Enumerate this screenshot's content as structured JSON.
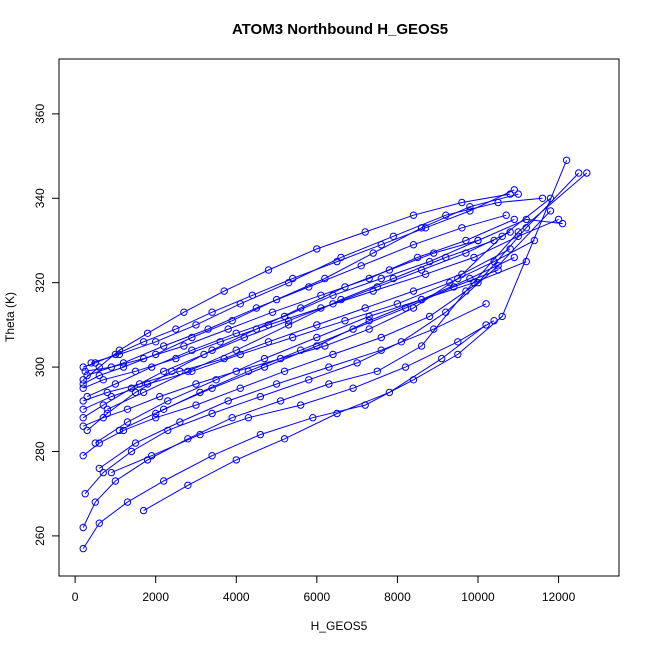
{
  "chart_data": {
    "type": "scatter",
    "title": "ATOM3 Northbound H_GEOS5",
    "xlabel": "H_GEOS5",
    "ylabel": "Theta (K)",
    "xlim": [
      -400,
      13500
    ],
    "ylim": [
      250.5,
      373
    ],
    "x_ticks": [
      0,
      2000,
      4000,
      6000,
      8000,
      10000,
      12000
    ],
    "x_tick_labels": [
      "0",
      "2000",
      "4000",
      "6000",
      "8000",
      "10000",
      "12000"
    ],
    "y_ticks": [
      260,
      280,
      300,
      320,
      340,
      360
    ],
    "y_tick_labels": [
      "260",
      "280",
      "300",
      "320",
      "340",
      "360"
    ],
    "grid": false,
    "legend": "none",
    "marker": "open circle",
    "line": "connected",
    "color": "#0000ff",
    "series": [
      {
        "x": [
          200,
          600,
          1300,
          2200,
          3400,
          4600,
          5900,
          7200,
          8400,
          9500,
          10600,
          12200
        ],
        "y": [
          257,
          263,
          268,
          273,
          279,
          284,
          288,
          291,
          297,
          303,
          312,
          349
        ]
      },
      {
        "x": [
          200,
          500,
          1000,
          1800,
          2800,
          3900,
          5100,
          6300,
          7500,
          8600,
          9700,
          11000,
          12700
        ],
        "y": [
          262,
          268,
          273,
          278,
          283,
          288,
          292,
          296,
          299,
          305,
          318,
          332,
          346
        ]
      },
      {
        "x": [
          250,
          700,
          1400,
          2300,
          3400,
          4600,
          5800,
          7000,
          8100,
          9200,
          10500,
          11800
        ],
        "y": [
          270,
          275,
          280,
          285,
          289,
          293,
          297,
          301,
          306,
          313,
          324,
          337
        ]
      },
      {
        "x": [
          200,
          600,
          1200,
          2000,
          3000,
          4100,
          5200,
          6400,
          7600,
          8800,
          10000,
          11200,
          12500
        ],
        "y": [
          279,
          282,
          285,
          288,
          291,
          295,
          299,
          303,
          307,
          312,
          320,
          333,
          346
        ]
      },
      {
        "x": [
          200,
          700,
          1300,
          2100,
          3000,
          4000,
          5100,
          6200,
          7300,
          8400,
          9500,
          10600,
          11800
        ],
        "y": [
          286,
          288,
          290,
          293,
          296,
          299,
          302,
          305,
          309,
          314,
          321,
          331,
          340
        ]
      },
      {
        "x": [
          200,
          800,
          1600,
          2600,
          3700,
          4800,
          6000,
          7200,
          8400,
          9600,
          10800
        ],
        "y": [
          292,
          294,
          296,
          299,
          302,
          306,
          310,
          314,
          318,
          322,
          328
        ]
      },
      {
        "x": [
          250,
          900,
          1700,
          2700,
          3800,
          4900,
          6100,
          7300,
          8500,
          9700,
          10900
        ],
        "y": [
          299,
          300,
          302,
          305,
          309,
          313,
          317,
          321,
          326,
          330,
          335
        ]
      },
      {
        "x": [
          200,
          600,
          1200,
          2000,
          2900,
          3900,
          5000,
          6200,
          7400,
          8600,
          9800,
          11000
        ],
        "y": [
          296,
          298,
          300,
          303,
          307,
          311,
          316,
          321,
          327,
          333,
          338,
          341
        ]
      },
      {
        "x": [
          200,
          500,
          1000,
          1700,
          2500,
          3400,
          4400,
          5400,
          6500,
          7600,
          8700,
          9800,
          10900
        ],
        "y": [
          300,
          301,
          303,
          306,
          309,
          313,
          317,
          321,
          325,
          329,
          333,
          337,
          342
        ]
      },
      {
        "x": [
          300,
          800,
          1500,
          2400,
          3400,
          4500,
          5600,
          6700,
          7800,
          8900,
          10000
        ],
        "y": [
          285,
          289,
          294,
          299,
          304,
          309,
          314,
          319,
          323,
          327,
          330
        ]
      },
      {
        "x": [
          200,
          700,
          1400,
          2200,
          3200,
          4200,
          5300,
          6400,
          7500,
          8600,
          9700,
          10800
        ],
        "y": [
          288,
          291,
          295,
          299,
          303,
          307,
          311,
          315,
          319,
          323,
          327,
          332
        ]
      },
      {
        "x": [
          300,
          1000,
          1900,
          2900,
          4000,
          5200,
          6400,
          7600,
          8800,
          10000,
          11200,
          12100
        ],
        "y": [
          293,
          296,
          300,
          304,
          308,
          312,
          317,
          321,
          325,
          330,
          335,
          334
        ]
      },
      {
        "x": [
          400,
          1100,
          2000,
          3000,
          4100,
          5300,
          6600,
          7900,
          9200,
          10500,
          11600
        ],
        "y": [
          301,
          303,
          306,
          310,
          315,
          320,
          326,
          331,
          336,
          339,
          340
        ]
      },
      {
        "x": [
          500,
          1300,
          2300,
          3500,
          4700,
          6000,
          7300,
          8600,
          9900,
          11200
        ],
        "y": [
          282,
          287,
          292,
          297,
          302,
          307,
          312,
          316,
          320,
          325
        ]
      },
      {
        "x": [
          600,
          1500,
          2600,
          3800,
          5000,
          6300,
          7600,
          8900,
          10200
        ],
        "y": [
          276,
          282,
          287,
          292,
          296,
          300,
          304,
          309,
          315
        ]
      },
      {
        "x": [
          900,
          1900,
          3100,
          4300,
          5600,
          6900,
          8200,
          9500,
          10400
        ],
        "y": [
          275,
          279,
          284,
          288,
          291,
          295,
          300,
          306,
          311
        ]
      },
      {
        "x": [
          1700,
          2800,
          4000,
          5200,
          6500,
          7800,
          9100,
          10200
        ],
        "y": [
          266,
          272,
          278,
          283,
          289,
          294,
          302,
          310
        ]
      },
      {
        "x": [
          200,
          700,
          1500,
          2500,
          3600,
          4800,
          6100,
          7400,
          8700,
          9900,
          11000,
          12000
        ],
        "y": [
          295,
          297,
          299,
          302,
          306,
          310,
          314,
          318,
          322,
          326,
          331,
          335
        ]
      },
      {
        "x": [
          200,
          900,
          1800,
          2900,
          4100,
          5400,
          6700,
          8000,
          9300,
          10400,
          11400
        ],
        "y": [
          290,
          293,
          296,
          299,
          303,
          307,
          311,
          315,
          320,
          325,
          330
        ]
      },
      {
        "x": [
          300,
          1200,
          2200,
          3300,
          4500,
          5800,
          7100,
          8400,
          9600,
          10700
        ],
        "y": [
          298,
          301,
          305,
          309,
          314,
          319,
          324,
          329,
          333,
          336
        ]
      },
      {
        "x": [
          800,
          1700,
          2800,
          4000,
          5300,
          6600,
          7900,
          9200,
          10400
        ],
        "y": [
          290,
          294,
          299,
          304,
          310,
          316,
          321,
          326,
          330
        ]
      },
      {
        "x": [
          1100,
          2200,
          3400,
          4700,
          6000,
          7300,
          8600,
          9800,
          10900
        ],
        "y": [
          285,
          290,
          295,
          300,
          305,
          311,
          316,
          321,
          326
        ]
      },
      {
        "x": [
          200,
          600,
          1100,
          1800,
          2700,
          3700,
          4800,
          6000,
          7200,
          8400,
          9600,
          10800
        ],
        "y": [
          297,
          300,
          304,
          308,
          313,
          318,
          323,
          328,
          332,
          336,
          339,
          341
        ]
      },
      {
        "x": [
          2000,
          3100,
          4300,
          5600,
          6900,
          8200,
          9400,
          10500
        ],
        "y": [
          289,
          294,
          299,
          304,
          309,
          314,
          319,
          323
        ]
      }
    ]
  }
}
